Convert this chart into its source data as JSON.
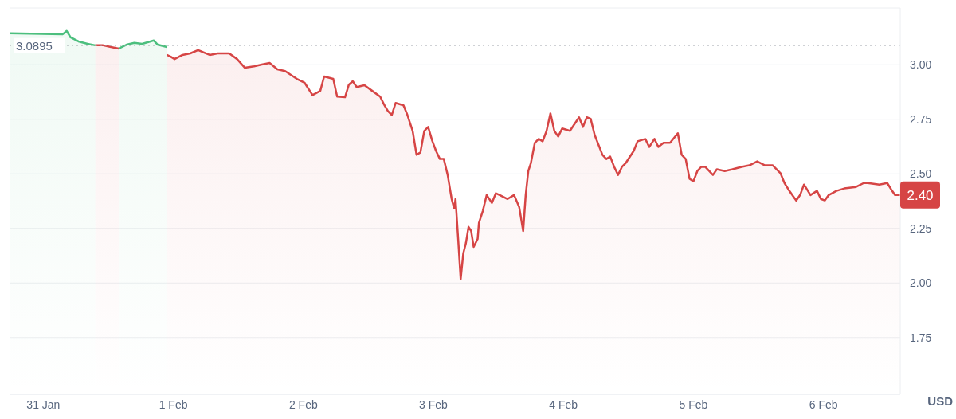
{
  "chart_data": {
    "type": "area",
    "ylabel": "USD",
    "xlim": [
      "--01-30T17:46",
      "--02-06T14:10"
    ],
    "xticks": [
      {
        "value": "--01-31",
        "label": "31 Jan"
      },
      {
        "value": "--02-01",
        "label": "1 Feb"
      },
      {
        "value": "--02-02",
        "label": "2 Feb"
      },
      {
        "value": "--02-03",
        "label": "3 Feb"
      },
      {
        "value": "--02-04",
        "label": "4 Feb"
      },
      {
        "value": "--02-05",
        "label": "5 Feb"
      },
      {
        "value": "--02-06",
        "label": "6 Feb"
      }
    ],
    "ylim": [
      1.49,
      3.26
    ],
    "yticks": [
      1.75,
      {
        "value": 2,
        "label": "2.00"
      },
      2.25,
      {
        "value": 2.5,
        "label": "2.50"
      },
      2.75,
      {
        "value": 3,
        "label": "3.00"
      }
    ],
    "grid": "y",
    "ref_lines": [
      {
        "axis": "y",
        "value": 3.0895,
        "label": "3.0895",
        "color": "#a0a4ab",
        "line_style": "dotted"
      }
    ],
    "annotations": [
      "2.40"
    ],
    "series": [
      {
        "color": "#4cbf7e",
        "x": [
          "--01-30T17:46",
          "--01-31T03:36",
          "--01-31T04:19",
          "--01-31T05:02",
          "--01-31T06:29",
          "--01-31T08:10",
          "--01-31T09:36"
        ],
        "values": [
          3.144,
          3.14,
          3.155,
          3.125,
          3.107,
          3.096,
          3.089
        ]
      },
      {
        "color": "#d64545",
        "x": [
          "--01-31T09:36",
          "--01-31T11:02",
          "--01-31T12:29",
          "--01-31T13:55"
        ],
        "values": [
          3.089,
          3.089,
          3.081,
          3.074
        ]
      },
      {
        "color": "#4cbf7e",
        "x": [
          "--01-31T13:55",
          "--01-31T15:22",
          "--01-31T16:48",
          "--01-31T18:14",
          "--01-31T20:24",
          "--01-31T21:07",
          "--01-31T22:48"
        ],
        "values": [
          3.074,
          3.092,
          3.1,
          3.096,
          3.111,
          3.092,
          3.081
        ]
      },
      {
        "color": "#d64545",
        "x": [
          "--01-31T22:48",
          "--01-31T23:31",
          "--02-01T00:14",
          "--02-01T01:41",
          "--02-01T03:07",
          "--02-01T04:34",
          "--02-01T06:43",
          "--02-01T08:10",
          "--02-01T10:19",
          "--02-01T11:46",
          "--02-01T13:12",
          "--02-01T14:53",
          "--02-01T16:19",
          "--02-01T17:46",
          "--02-01T19:12",
          "--02-01T20:38",
          "--02-01T22:48",
          "--02-02T00:14",
          "--02-02T01:41",
          "--02-02T03:07",
          "--02-02T03:50",
          "--02-02T05:31",
          "--02-02T06:14",
          "--02-02T07:41",
          "--02-02T08:24",
          "--02-02T09:07",
          "--02-02T09:50",
          "--02-02T11:17",
          "--02-02T12:43",
          "--02-02T14:10",
          "--02-02T14:53",
          "--02-02T15:36",
          "--02-02T16:19",
          "--02-02T17:02",
          "--02-02T18:29",
          "--02-02T19:12",
          "--02-02T20:10",
          "--02-02T20:53",
          "--02-02T21:36",
          "--02-02T22:19",
          "--02-02T23:02",
          "--02-02T23:46",
          "--02-03T00:29",
          "--02-03T01:12",
          "--02-03T01:55",
          "--02-03T02:38",
          "--02-03T03:22",
          "--02-03T03:50",
          "--02-03T04:05",
          "--02-03T04:34",
          "--02-03T05:02",
          "--02-03T05:31",
          "--02-03T06:00",
          "--02-03T06:29",
          "--02-03T06:58",
          "--02-03T07:26",
          "--02-03T08:10",
          "--02-03T08:24",
          "--02-03T09:07",
          "--02-03T09:50",
          "--02-03T10:48",
          "--02-03T11:31",
          "--02-03T12:14",
          "--02-03T13:41",
          "--02-03T14:53",
          "--02-03T15:50",
          "--02-03T16:34",
          "--02-03T17:02",
          "--02-03T17:31",
          "--02-03T18:00",
          "--02-03T18:43",
          "--02-03T19:26",
          "--02-03T20:10",
          "--02-03T20:53",
          "--02-03T21:36",
          "--02-03T22:19",
          "--02-03T23:02",
          "--02-03T23:46",
          "--02-04T01:12",
          "--02-04T02:53",
          "--02-04T03:36",
          "--02-04T04:19",
          "--02-04T05:02",
          "--02-04T05:46",
          "--02-04T07:12",
          "--02-04T07:55",
          "--02-04T08:38",
          "--02-04T09:22",
          "--02-04T10:05",
          "--02-04T10:48",
          "--02-04T11:31",
          "--02-04T12:58",
          "--02-04T13:41",
          "--02-04T15:07",
          "--02-04T15:50",
          "--02-04T16:48",
          "--02-04T17:31",
          "--02-04T18:29",
          "--02-04T19:41",
          "--02-04T21:07",
          "--02-04T21:50",
          "--02-04T22:34",
          "--02-04T23:17",
          "--02-05T00:00",
          "--02-05T00:43",
          "--02-05T01:26",
          "--02-05T02:10",
          "--02-05T03:36",
          "--02-05T04:19",
          "--02-05T05:46",
          "--02-05T07:12",
          "--02-05T08:53",
          "--02-05T10:19",
          "--02-05T11:46",
          "--02-05T13:12",
          "--02-05T14:38",
          "--02-05T16:05",
          "--02-05T16:48",
          "--02-05T17:31",
          "--02-05T18:14",
          "--02-05T18:58",
          "--02-05T19:41",
          "--02-05T20:24",
          "--02-05T21:36",
          "--02-05T22:48",
          "--02-05T23:31",
          "--02-06T00:14",
          "--02-06T00:58",
          "--02-06T02:24",
          "--02-06T03:50",
          "--02-06T06:00",
          "--02-06T07:26",
          "--02-06T08:10",
          "--02-06T10:19",
          "--02-06T11:46",
          "--02-06T12:29",
          "--02-06T13:12",
          "--02-06T14:10"
        ],
        "values": [
          3.045,
          3.037,
          3.026,
          3.045,
          3.052,
          3.067,
          3.045,
          3.052,
          3.052,
          3.026,
          2.986,
          2.993,
          3.001,
          3.008,
          2.979,
          2.971,
          2.935,
          2.917,
          2.861,
          2.88,
          2.946,
          2.935,
          2.854,
          2.851,
          2.909,
          2.924,
          2.898,
          2.906,
          2.88,
          2.854,
          2.818,
          2.788,
          2.77,
          2.825,
          2.814,
          2.77,
          2.697,
          2.587,
          2.598,
          2.697,
          2.715,
          2.653,
          2.605,
          2.568,
          2.568,
          2.495,
          2.385,
          2.341,
          2.385,
          2.202,
          2.018,
          2.136,
          2.183,
          2.257,
          2.238,
          2.165,
          2.202,
          2.275,
          2.33,
          2.403,
          2.367,
          2.411,
          2.403,
          2.385,
          2.403,
          2.348,
          2.238,
          2.403,
          2.513,
          2.55,
          2.642,
          2.66,
          2.649,
          2.697,
          2.777,
          2.697,
          2.671,
          2.708,
          2.697,
          2.759,
          2.715,
          2.759,
          2.752,
          2.678,
          2.587,
          2.568,
          2.579,
          2.532,
          2.495,
          2.532,
          2.55,
          2.605,
          2.649,
          2.66,
          2.623,
          2.66,
          2.623,
          2.642,
          2.642,
          2.686,
          2.587,
          2.568,
          2.477,
          2.466,
          2.513,
          2.532,
          2.532,
          2.495,
          2.521,
          2.513,
          2.521,
          2.532,
          2.539,
          2.557,
          2.539,
          2.539,
          2.502,
          2.458,
          2.429,
          2.403,
          2.378,
          2.403,
          2.451,
          2.403,
          2.422,
          2.385,
          2.378,
          2.403,
          2.422,
          2.433,
          2.44,
          2.458,
          2.458,
          2.451,
          2.458,
          2.429,
          2.403,
          2.403
        ]
      }
    ]
  }
}
